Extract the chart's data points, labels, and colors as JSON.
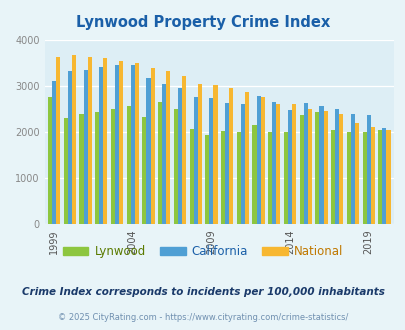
{
  "title": "Lynwood Property Crime Index",
  "subtitle": "Crime Index corresponds to incidents per 100,000 inhabitants",
  "footer": "© 2025 CityRating.com - https://www.cityrating.com/crime-statistics/",
  "years": [
    1999,
    2000,
    2001,
    2002,
    2003,
    2004,
    2005,
    2006,
    2007,
    2008,
    2009,
    2010,
    2011,
    2012,
    2013,
    2014,
    2015,
    2016,
    2017,
    2018,
    2019,
    2020
  ],
  "lynwood": [
    2760,
    2310,
    2400,
    2440,
    2500,
    2560,
    2330,
    2650,
    2500,
    2070,
    1940,
    2030,
    1990,
    2160,
    2000,
    1990,
    2360,
    2430,
    2040,
    2000,
    2010,
    2050
  ],
  "california": [
    3100,
    3310,
    3340,
    3410,
    3440,
    3440,
    3160,
    3040,
    2950,
    2750,
    2730,
    2620,
    2600,
    2770,
    2640,
    2470,
    2620,
    2560,
    2490,
    2380,
    2360,
    2090
  ],
  "national": [
    3630,
    3660,
    3620,
    3600,
    3540,
    3490,
    3390,
    3320,
    3220,
    3040,
    3020,
    2950,
    2870,
    2760,
    2600,
    2610,
    2490,
    2450,
    2380,
    2190,
    2100,
    2050
  ],
  "lynwood_color": "#8dc63f",
  "california_color": "#4f9fd4",
  "national_color": "#f7b731",
  "bg_color": "#e8f4f8",
  "plot_bg_color": "#ddeef5",
  "title_color": "#1a5fa8",
  "ylim": [
    0,
    4000
  ],
  "yticks": [
    0,
    1000,
    2000,
    3000,
    4000
  ],
  "tick_label_years": [
    1999,
    2004,
    2009,
    2014,
    2019
  ],
  "bar_width": 0.26,
  "legend_labels": [
    "Lynwood",
    "California",
    "National"
  ],
  "legend_label_colors": [
    "#5a7a00",
    "#1a5fa8",
    "#c07800"
  ],
  "subtitle_color": "#1a3a6a",
  "footer_color": "#7090b0"
}
